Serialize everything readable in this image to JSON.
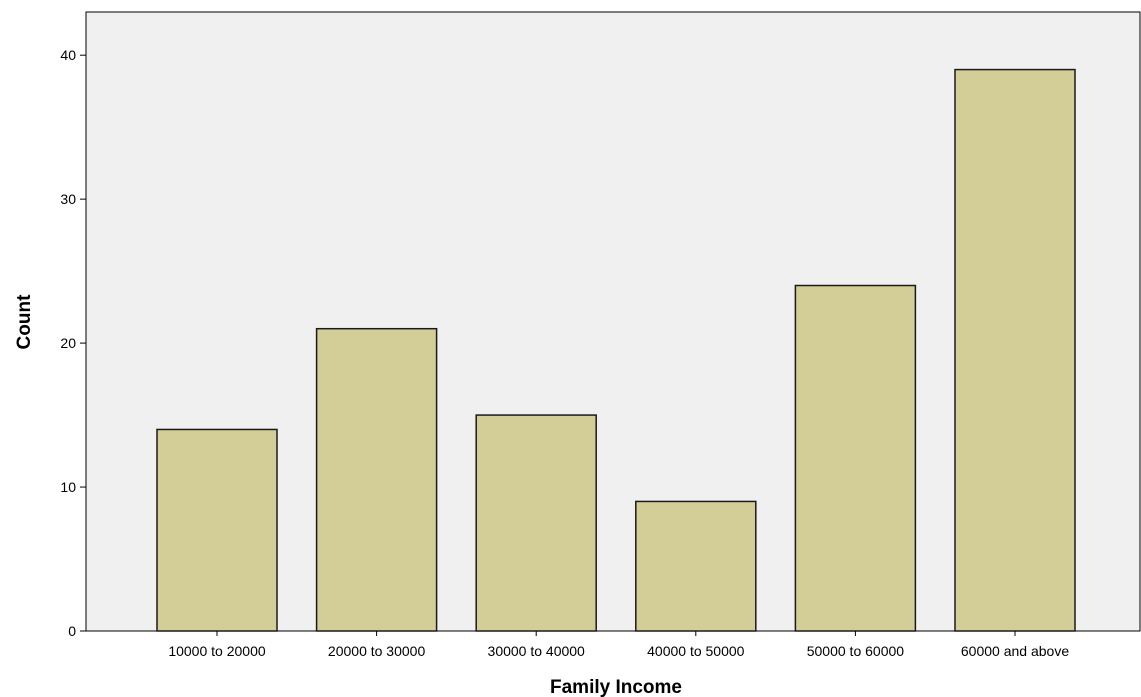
{
  "chart_data": {
    "type": "bar",
    "categories": [
      "10000 to 20000",
      "20000 to 30000",
      "30000 to 40000",
      "40000 to 50000",
      "50000 to 60000",
      "60000 and above"
    ],
    "values": [
      14,
      21,
      15,
      9,
      24,
      39
    ],
    "title": "",
    "xlabel": "Family Income",
    "ylabel": "Count",
    "ylim": [
      0,
      43
    ],
    "yticks": [
      0,
      10,
      20,
      30,
      40
    ],
    "grid": false,
    "legend": "none",
    "colors": {
      "plot_background": "#f0f0f0",
      "bar_fill": "#d3ce98",
      "bar_stroke": "#1a1a1a",
      "axis": "#000000"
    }
  }
}
